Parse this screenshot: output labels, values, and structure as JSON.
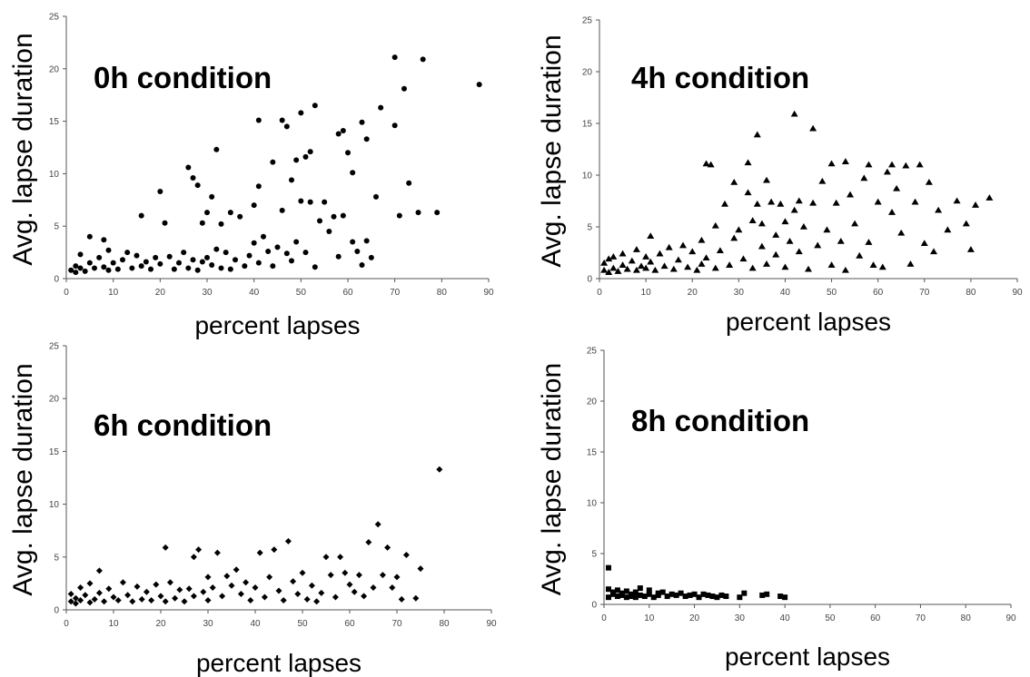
{
  "chart_data": [
    {
      "type": "scatter",
      "title": "0h condition",
      "xlabel": "percent lapses",
      "ylabel": "Avg. lapse duration",
      "xlim": [
        0,
        90
      ],
      "ylim": [
        0,
        25
      ],
      "xticks": [
        0,
        10,
        20,
        30,
        40,
        50,
        60,
        70,
        80,
        90
      ],
      "yticks": [
        0,
        5,
        10,
        15,
        20,
        25
      ],
      "marker": "circle",
      "points": [
        [
          1,
          0.8
        ],
        [
          2,
          1.2
        ],
        [
          2,
          0.6
        ],
        [
          3,
          2.3
        ],
        [
          3,
          1.0
        ],
        [
          4,
          0.7
        ],
        [
          5,
          4.0
        ],
        [
          5,
          1.5
        ],
        [
          6,
          1.0
        ],
        [
          7,
          2.0
        ],
        [
          8,
          3.7
        ],
        [
          8,
          1.1
        ],
        [
          9,
          0.8
        ],
        [
          9,
          2.7
        ],
        [
          10,
          1.5
        ],
        [
          11,
          0.9
        ],
        [
          12,
          1.8
        ],
        [
          13,
          2.5
        ],
        [
          14,
          1.0
        ],
        [
          15,
          2.2
        ],
        [
          16,
          6.0
        ],
        [
          16,
          1.2
        ],
        [
          17,
          1.6
        ],
        [
          18,
          0.9
        ],
        [
          19,
          2.0
        ],
        [
          20,
          8.3
        ],
        [
          20,
          1.4
        ],
        [
          21,
          5.3
        ],
        [
          22,
          2.1
        ],
        [
          23,
          0.9
        ],
        [
          24,
          1.5
        ],
        [
          25,
          2.5
        ],
        [
          26,
          10.6
        ],
        [
          26,
          1.0
        ],
        [
          27,
          9.6
        ],
        [
          27,
          1.8
        ],
        [
          28,
          8.9
        ],
        [
          28,
          0.8
        ],
        [
          29,
          5.3
        ],
        [
          29,
          1.6
        ],
        [
          30,
          6.3
        ],
        [
          30,
          2.0
        ],
        [
          31,
          7.8
        ],
        [
          31,
          1.3
        ],
        [
          32,
          12.3
        ],
        [
          32,
          2.8
        ],
        [
          33,
          5.2
        ],
        [
          33,
          1.0
        ],
        [
          34,
          2.5
        ],
        [
          35,
          6.3
        ],
        [
          35,
          0.9
        ],
        [
          36,
          1.8
        ],
        [
          37,
          5.9
        ],
        [
          38,
          1.2
        ],
        [
          39,
          2.2
        ],
        [
          40,
          3.4
        ],
        [
          40,
          7.0
        ],
        [
          41,
          15.1
        ],
        [
          41,
          8.8
        ],
        [
          41,
          1.5
        ],
        [
          42,
          4.0
        ],
        [
          43,
          2.6
        ],
        [
          44,
          11.1
        ],
        [
          44,
          1.2
        ],
        [
          45,
          3.0
        ],
        [
          46,
          15.1
        ],
        [
          46,
          6.5
        ],
        [
          47,
          2.4
        ],
        [
          47,
          14.5
        ],
        [
          48,
          9.4
        ],
        [
          48,
          1.7
        ],
        [
          49,
          11.3
        ],
        [
          49,
          3.5
        ],
        [
          50,
          15.8
        ],
        [
          50,
          7.4
        ],
        [
          51,
          11.6
        ],
        [
          51,
          2.5
        ],
        [
          52,
          12.1
        ],
        [
          52,
          7.3
        ],
        [
          53,
          16.5
        ],
        [
          53,
          1.1
        ],
        [
          54,
          5.5
        ],
        [
          55,
          7.3
        ],
        [
          56,
          4.5
        ],
        [
          57,
          5.9
        ],
        [
          58,
          13.8
        ],
        [
          58,
          2.1
        ],
        [
          59,
          14.1
        ],
        [
          59,
          6.0
        ],
        [
          60,
          12.0
        ],
        [
          61,
          10.1
        ],
        [
          61,
          3.5
        ],
        [
          62,
          2.6
        ],
        [
          63,
          14.9
        ],
        [
          63,
          1.3
        ],
        [
          64,
          13.3
        ],
        [
          64,
          3.6
        ],
        [
          65,
          2.0
        ],
        [
          66,
          7.8
        ],
        [
          67,
          16.3
        ],
        [
          70,
          21.1
        ],
        [
          70,
          14.6
        ],
        [
          71,
          6.0
        ],
        [
          72,
          18.1
        ],
        [
          73,
          9.1
        ],
        [
          75,
          6.3
        ],
        [
          76,
          20.9
        ],
        [
          79,
          6.3
        ],
        [
          88,
          18.5
        ]
      ]
    },
    {
      "type": "scatter",
      "title": "4h condition",
      "xlabel": "percent lapses",
      "ylabel": "Avg. lapse duration",
      "xlim": [
        0,
        90
      ],
      "ylim": [
        0,
        25
      ],
      "xticks": [
        0,
        10,
        20,
        30,
        40,
        50,
        60,
        70,
        80,
        90
      ],
      "yticks": [
        0,
        5,
        10,
        15,
        20,
        25
      ],
      "marker": "triangle",
      "points": [
        [
          1,
          0.8
        ],
        [
          1,
          1.5
        ],
        [
          2,
          0.6
        ],
        [
          2,
          1.9
        ],
        [
          3,
          1.0
        ],
        [
          3,
          2.1
        ],
        [
          4,
          0.7
        ],
        [
          5,
          1.3
        ],
        [
          5,
          2.4
        ],
        [
          6,
          0.9
        ],
        [
          7,
          1.7
        ],
        [
          8,
          0.8
        ],
        [
          8,
          2.8
        ],
        [
          9,
          1.2
        ],
        [
          10,
          1.0
        ],
        [
          10,
          2.1
        ],
        [
          11,
          4.1
        ],
        [
          11,
          1.6
        ],
        [
          12,
          0.8
        ],
        [
          13,
          2.4
        ],
        [
          14,
          1.2
        ],
        [
          15,
          3.0
        ],
        [
          16,
          0.9
        ],
        [
          17,
          1.8
        ],
        [
          18,
          3.2
        ],
        [
          19,
          1.1
        ],
        [
          20,
          2.6
        ],
        [
          21,
          0.8
        ],
        [
          22,
          3.7
        ],
        [
          22,
          1.4
        ],
        [
          23,
          11.1
        ],
        [
          23,
          2.0
        ],
        [
          24,
          11.0
        ],
        [
          25,
          5.1
        ],
        [
          25,
          1.0
        ],
        [
          26,
          2.7
        ],
        [
          27,
          7.2
        ],
        [
          28,
          1.3
        ],
        [
          29,
          9.3
        ],
        [
          29,
          3.9
        ],
        [
          30,
          4.7
        ],
        [
          31,
          1.9
        ],
        [
          32,
          8.3
        ],
        [
          32,
          11.2
        ],
        [
          33,
          5.6
        ],
        [
          33,
          1.0
        ],
        [
          34,
          13.9
        ],
        [
          34,
          7.2
        ],
        [
          35,
          3.1
        ],
        [
          35,
          5.3
        ],
        [
          36,
          9.5
        ],
        [
          36,
          1.4
        ],
        [
          37,
          7.4
        ],
        [
          38,
          4.2
        ],
        [
          38,
          2.3
        ],
        [
          39,
          7.2
        ],
        [
          40,
          5.5
        ],
        [
          40,
          1.1
        ],
        [
          41,
          3.6
        ],
        [
          42,
          15.9
        ],
        [
          42,
          6.6
        ],
        [
          43,
          7.5
        ],
        [
          43,
          2.6
        ],
        [
          44,
          5.0
        ],
        [
          45,
          0.9
        ],
        [
          46,
          14.5
        ],
        [
          46,
          7.3
        ],
        [
          47,
          3.2
        ],
        [
          48,
          9.4
        ],
        [
          49,
          4.7
        ],
        [
          50,
          11.1
        ],
        [
          50,
          1.3
        ],
        [
          51,
          7.3
        ],
        [
          52,
          3.6
        ],
        [
          53,
          11.3
        ],
        [
          53,
          0.8
        ],
        [
          54,
          8.1
        ],
        [
          55,
          5.3
        ],
        [
          56,
          2.2
        ],
        [
          57,
          9.7
        ],
        [
          58,
          11.0
        ],
        [
          58,
          3.5
        ],
        [
          59,
          1.3
        ],
        [
          60,
          7.4
        ],
        [
          61,
          1.1
        ],
        [
          62,
          10.3
        ],
        [
          63,
          11.0
        ],
        [
          63,
          6.4
        ],
        [
          64,
          8.7
        ],
        [
          65,
          4.4
        ],
        [
          66,
          10.9
        ],
        [
          67,
          1.4
        ],
        [
          68,
          7.4
        ],
        [
          69,
          11.0
        ],
        [
          70,
          3.4
        ],
        [
          71,
          9.3
        ],
        [
          72,
          2.6
        ],
        [
          73,
          6.6
        ],
        [
          75,
          4.7
        ],
        [
          77,
          7.5
        ],
        [
          79,
          5.3
        ],
        [
          80,
          2.8
        ],
        [
          81,
          7.1
        ],
        [
          84,
          7.8
        ]
      ]
    },
    {
      "type": "scatter",
      "title": "6h condition",
      "xlabel": "percent lapses",
      "ylabel": "Avg. lapse duration",
      "xlim": [
        0,
        90
      ],
      "ylim": [
        0,
        25
      ],
      "xticks": [
        0,
        10,
        20,
        30,
        40,
        50,
        60,
        70,
        80,
        90
      ],
      "yticks": [
        0,
        5,
        10,
        15,
        20,
        25
      ],
      "marker": "diamond",
      "points": [
        [
          1,
          0.8
        ],
        [
          1,
          1.5
        ],
        [
          2,
          0.6
        ],
        [
          2,
          1.1
        ],
        [
          3,
          2.1
        ],
        [
          3,
          0.9
        ],
        [
          4,
          1.4
        ],
        [
          5,
          2.5
        ],
        [
          5,
          0.7
        ],
        [
          6,
          1.0
        ],
        [
          7,
          3.7
        ],
        [
          7,
          1.6
        ],
        [
          8,
          0.8
        ],
        [
          9,
          2.0
        ],
        [
          10,
          1.2
        ],
        [
          11,
          0.9
        ],
        [
          12,
          2.6
        ],
        [
          13,
          1.4
        ],
        [
          14,
          0.8
        ],
        [
          15,
          2.2
        ],
        [
          16,
          1.0
        ],
        [
          17,
          1.7
        ],
        [
          18,
          0.9
        ],
        [
          19,
          2.4
        ],
        [
          20,
          1.3
        ],
        [
          21,
          5.9
        ],
        [
          21,
          0.8
        ],
        [
          22,
          2.6
        ],
        [
          23,
          1.1
        ],
        [
          24,
          1.9
        ],
        [
          25,
          0.8
        ],
        [
          26,
          2.0
        ],
        [
          27,
          5.0
        ],
        [
          27,
          1.3
        ],
        [
          28,
          5.7
        ],
        [
          29,
          1.7
        ],
        [
          30,
          3.1
        ],
        [
          30,
          0.9
        ],
        [
          31,
          2.1
        ],
        [
          32,
          5.4
        ],
        [
          33,
          1.3
        ],
        [
          34,
          3.2
        ],
        [
          35,
          2.3
        ],
        [
          36,
          3.8
        ],
        [
          37,
          1.5
        ],
        [
          38,
          2.6
        ],
        [
          39,
          0.9
        ],
        [
          40,
          2.1
        ],
        [
          41,
          5.4
        ],
        [
          42,
          1.2
        ],
        [
          43,
          3.1
        ],
        [
          44,
          5.7
        ],
        [
          45,
          1.8
        ],
        [
          46,
          0.9
        ],
        [
          47,
          6.5
        ],
        [
          48,
          2.7
        ],
        [
          49,
          1.5
        ],
        [
          50,
          3.5
        ],
        [
          51,
          1.0
        ],
        [
          52,
          2.3
        ],
        [
          53,
          0.8
        ],
        [
          54,
          1.6
        ],
        [
          55,
          5.0
        ],
        [
          56,
          3.3
        ],
        [
          57,
          1.2
        ],
        [
          58,
          5.0
        ],
        [
          59,
          3.5
        ],
        [
          60,
          2.4
        ],
        [
          61,
          1.7
        ],
        [
          62,
          3.3
        ],
        [
          63,
          1.3
        ],
        [
          64,
          6.4
        ],
        [
          65,
          2.1
        ],
        [
          66,
          8.1
        ],
        [
          67,
          3.3
        ],
        [
          68,
          5.9
        ],
        [
          69,
          2.1
        ],
        [
          70,
          3.1
        ],
        [
          71,
          1.0
        ],
        [
          72,
          5.2
        ],
        [
          74,
          1.1
        ],
        [
          75,
          3.9
        ],
        [
          79,
          13.3
        ]
      ]
    },
    {
      "type": "scatter",
      "title": "8h condition",
      "xlabel": "percent lapses",
      "ylabel": "Avg. lapse duration",
      "xlim": [
        0,
        90
      ],
      "ylim": [
        0,
        25
      ],
      "xticks": [
        0,
        10,
        20,
        30,
        40,
        50,
        60,
        70,
        80,
        90
      ],
      "yticks": [
        0,
        5,
        10,
        15,
        20,
        25
      ],
      "marker": "square",
      "points": [
        [
          1,
          3.6
        ],
        [
          1,
          1.5
        ],
        [
          1,
          0.7
        ],
        [
          2,
          1.0
        ],
        [
          2,
          1.2
        ],
        [
          3,
          0.8
        ],
        [
          3,
          1.4
        ],
        [
          4,
          0.9
        ],
        [
          4,
          1.1
        ],
        [
          5,
          0.7
        ],
        [
          5,
          1.3
        ],
        [
          6,
          0.8
        ],
        [
          6,
          1.0
        ],
        [
          7,
          1.2
        ],
        [
          7,
          0.7
        ],
        [
          8,
          0.9
        ],
        [
          8,
          1.6
        ],
        [
          9,
          0.8
        ],
        [
          10,
          1.0
        ],
        [
          10,
          1.4
        ],
        [
          11,
          0.7
        ],
        [
          12,
          1.1
        ],
        [
          12,
          0.9
        ],
        [
          13,
          1.2
        ],
        [
          14,
          0.8
        ],
        [
          15,
          1.0
        ],
        [
          16,
          0.9
        ],
        [
          17,
          1.1
        ],
        [
          18,
          0.8
        ],
        [
          19,
          0.9
        ],
        [
          20,
          1.0
        ],
        [
          21,
          0.7
        ],
        [
          22,
          1.0
        ],
        [
          23,
          0.9
        ],
        [
          24,
          0.8
        ],
        [
          25,
          0.7
        ],
        [
          26,
          0.9
        ],
        [
          27,
          0.8
        ],
        [
          30,
          0.7
        ],
        [
          31,
          1.1
        ],
        [
          35,
          0.9
        ],
        [
          36,
          1.0
        ],
        [
          39,
          0.8
        ],
        [
          40,
          0.7
        ]
      ]
    }
  ]
}
